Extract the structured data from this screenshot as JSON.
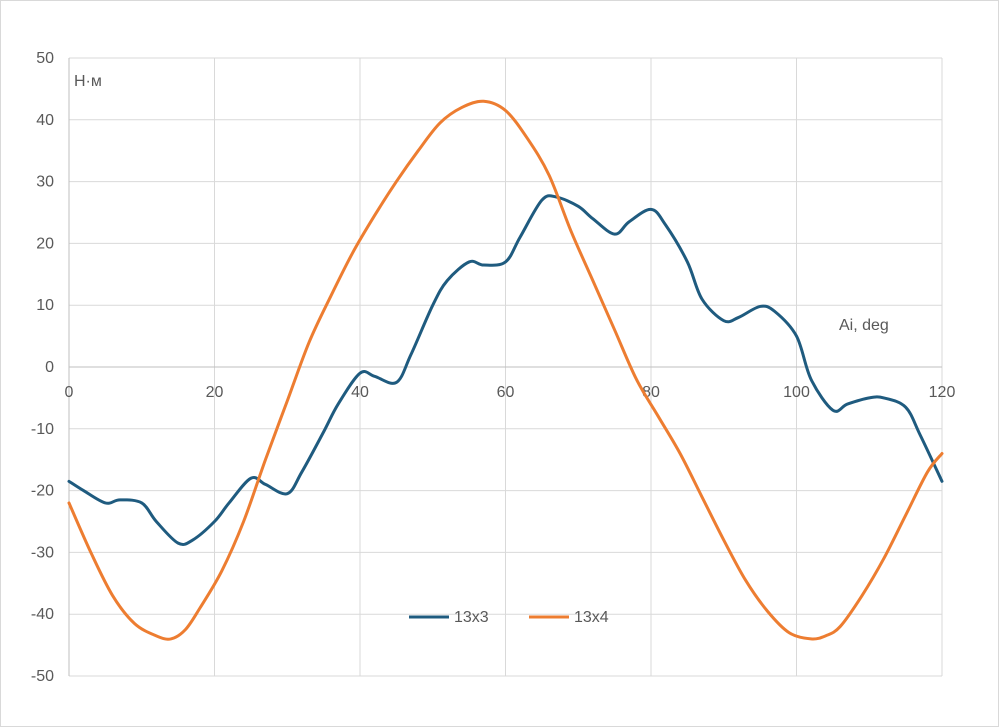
{
  "chart_data": {
    "type": "line",
    "title": "",
    "xlabel": "Ai, deg",
    "ylabel": "Н·м",
    "xlim": [
      0,
      120
    ],
    "ylim": [
      -50,
      50
    ],
    "x_ticks": [
      "0",
      "20",
      "40",
      "60",
      "80",
      "100",
      "120"
    ],
    "y_ticks": [
      "50",
      "40",
      "30",
      "20",
      "10",
      "0",
      "-10",
      "-20",
      "-30",
      "-40",
      "-50"
    ],
    "grid": true,
    "legend_position": "bottom-center",
    "series": [
      {
        "name": "13x3",
        "color": "#1f5b7f",
        "x": [
          0,
          2,
          5,
          7,
          10,
          12,
          15,
          17,
          20,
          22,
          25,
          27,
          30,
          32,
          35,
          37,
          40,
          42,
          45,
          47,
          50,
          52,
          55,
          57,
          60,
          62,
          65,
          67,
          70,
          72,
          75,
          77,
          80,
          82,
          85,
          87,
          90,
          92,
          95,
          97,
          100,
          102,
          105,
          107,
          110,
          112,
          115,
          117,
          120
        ],
        "values": [
          -18.5,
          -20,
          -22,
          -21.5,
          -22,
          -25,
          -28.5,
          -28,
          -25,
          -22,
          -18,
          -19,
          -20.5,
          -17,
          -10.5,
          -6,
          -1,
          -1.5,
          -2.5,
          2,
          10,
          14,
          17,
          16.5,
          17,
          21,
          27,
          27.5,
          26,
          24,
          21.5,
          23.5,
          25.5,
          23,
          17,
          11,
          7.5,
          8,
          9.8,
          9,
          5,
          -2,
          -7,
          -6,
          -5,
          -5,
          -6.5,
          -11,
          -18.5
        ]
      },
      {
        "name": "13x4",
        "color": "#ed7d31",
        "x": [
          0,
          3,
          6,
          9,
          12,
          14,
          16,
          18,
          21,
          24,
          27,
          30,
          33,
          36,
          39,
          42,
          45,
          48,
          51,
          54,
          57,
          60,
          63,
          66,
          69,
          72,
          75,
          78,
          81,
          84,
          87,
          90,
          93,
          96,
          99,
          102,
          104,
          106,
          109,
          112,
          115,
          118,
          120
        ],
        "values": [
          -22,
          -30,
          -37,
          -41.5,
          -43.5,
          -44,
          -42.5,
          -39,
          -33,
          -25,
          -15,
          -5.5,
          4,
          11.5,
          18.5,
          24.5,
          30,
          35,
          39.5,
          42,
          43,
          41.5,
          37,
          31,
          22,
          14,
          6,
          -2,
          -8,
          -14,
          -21,
          -28,
          -34.5,
          -39.5,
          -43,
          -44,
          -43.5,
          -42,
          -37,
          -31,
          -24,
          -17,
          -14
        ]
      }
    ]
  }
}
